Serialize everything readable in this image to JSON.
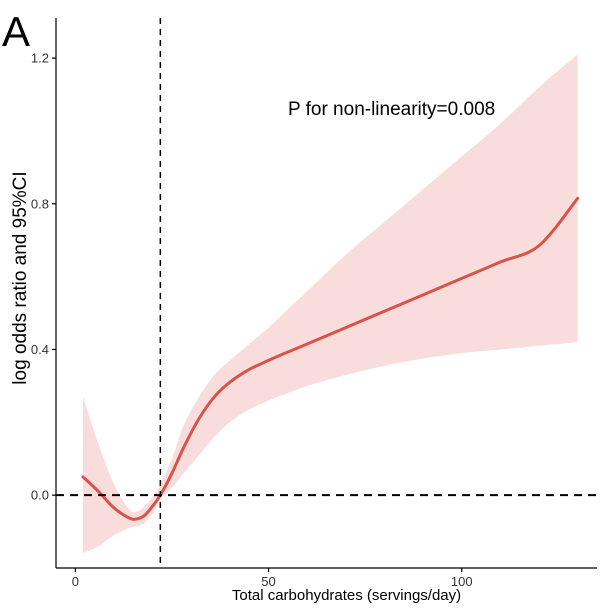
{
  "chart_data": {
    "type": "line",
    "panel_label": "A",
    "annotation": "P for non-linearity=0.008",
    "xlabel": "Total carbohydrates (servings/day)",
    "ylabel": "log odds ratio and 95%CI",
    "xlim": [
      -5,
      135
    ],
    "ylim": [
      -0.2,
      1.31
    ],
    "x_ticks": [
      0,
      50,
      100
    ],
    "x_tick_labels": [
      "0",
      "50",
      "100"
    ],
    "y_ticks": [
      0.0,
      0.4,
      0.8,
      1.2
    ],
    "y_tick_labels": [
      "0.0",
      "0.4",
      "0.8",
      "1.2"
    ],
    "reference_lines": {
      "horizontal_y": 0.0,
      "vertical_x": 22
    },
    "grid": false,
    "legend": "none",
    "colors": {
      "line": "#d9534a",
      "ci_band": "#f9dddd",
      "axis": "#000000",
      "reference": "#000000"
    },
    "series": [
      {
        "x": [
          2,
          6,
          10,
          14,
          16,
          18,
          20,
          22,
          25,
          28,
          32,
          36,
          40,
          45,
          50,
          55,
          60,
          70,
          80,
          90,
          100,
          110,
          120,
          130
        ],
        "y": [
          0.05,
          0.01,
          -0.035,
          -0.063,
          -0.065,
          -0.055,
          -0.03,
          0.0,
          0.06,
          0.13,
          0.21,
          0.27,
          0.31,
          0.345,
          0.37,
          0.393,
          0.415,
          0.46,
          0.505,
          0.55,
          0.595,
          0.64,
          0.685,
          0.815
        ],
        "lower": [
          -0.16,
          -0.14,
          -0.11,
          -0.09,
          -0.085,
          -0.075,
          -0.05,
          -0.01,
          0.02,
          0.06,
          0.11,
          0.16,
          0.2,
          0.235,
          0.26,
          0.28,
          0.3,
          0.33,
          0.355,
          0.375,
          0.39,
          0.4,
          0.41,
          0.42
        ],
        "upper": [
          0.27,
          0.14,
          0.03,
          -0.04,
          -0.045,
          -0.03,
          -0.005,
          0.03,
          0.1,
          0.19,
          0.27,
          0.33,
          0.37,
          0.415,
          0.46,
          0.51,
          0.56,
          0.66,
          0.75,
          0.84,
          0.93,
          1.02,
          1.12,
          1.21
        ]
      }
    ]
  }
}
